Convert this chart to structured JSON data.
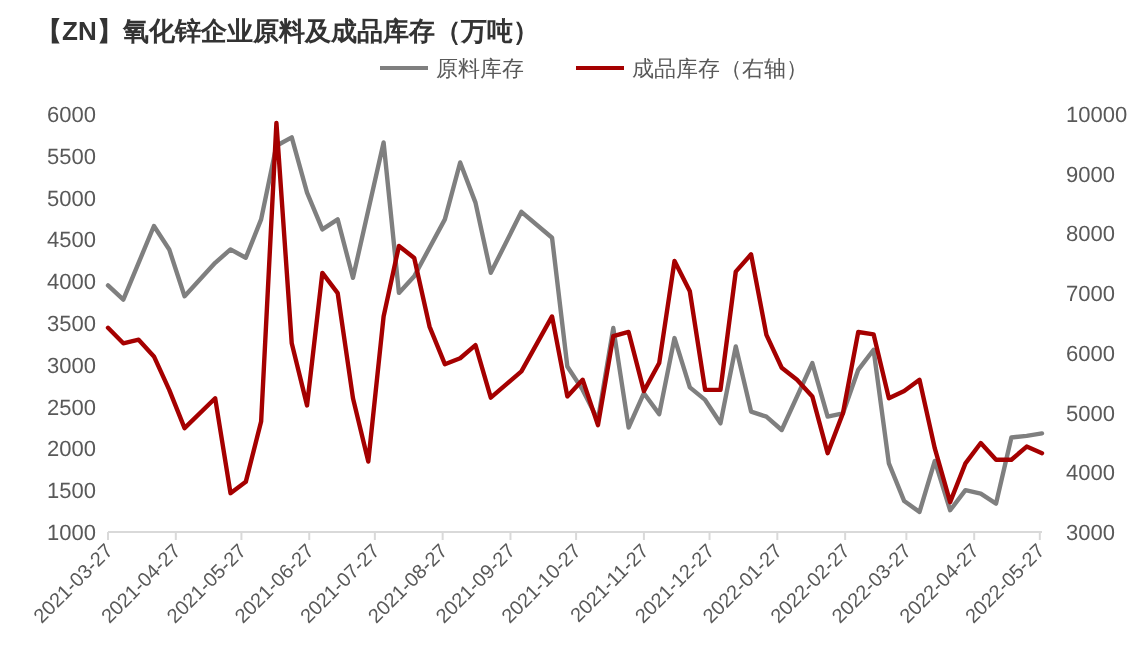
{
  "chart_data": {
    "type": "line",
    "title": "【ZN】氧化锌企业原料及成品库存（万吨）",
    "legend": "top",
    "grid": false,
    "xlim": [
      "2021-03-27",
      "2022-05-28"
    ],
    "xticks": [
      "2021-03-27",
      "2021-04-27",
      "2021-05-27",
      "2021-06-27",
      "2021-07-27",
      "2021-08-27",
      "2021-09-27",
      "2021-10-27",
      "2021-11-27",
      "2021-12-27",
      "2022-01-27",
      "2022-02-27",
      "2022-03-27",
      "2022-04-27",
      "2022-05-27"
    ],
    "ylim": [
      1000,
      6000
    ],
    "yticks": [
      1000,
      1500,
      2000,
      2500,
      3000,
      3500,
      4000,
      4500,
      5000,
      5500,
      6000
    ],
    "y2lim": [
      3000,
      10000
    ],
    "y2ticks": [
      3000,
      4000,
      5000,
      6000,
      7000,
      8000,
      9000,
      10000
    ],
    "series": [
      {
        "name": "原料库存",
        "color": "#7f7f7f",
        "axis": "y",
        "x": [
          "2021-03-27",
          "2021-04-03",
          "2021-04-17",
          "2021-04-24",
          "2021-05-01",
          "2021-05-15",
          "2021-05-22",
          "2021-05-29",
          "2021-06-05",
          "2021-06-12",
          "2021-06-19",
          "2021-06-26",
          "2021-07-03",
          "2021-07-10",
          "2021-07-17",
          "2021-07-31",
          "2021-08-07",
          "2021-08-14",
          "2021-08-28",
          "2021-09-04",
          "2021-09-11",
          "2021-09-18",
          "2021-10-02",
          "2021-10-16",
          "2021-10-23",
          "2021-10-30",
          "2021-11-06",
          "2021-11-13",
          "2021-11-20",
          "2021-11-27",
          "2021-12-04",
          "2021-12-11",
          "2021-12-18",
          "2021-12-25",
          "2022-01-01",
          "2022-01-08",
          "2022-01-15",
          "2022-01-22",
          "2022-01-29",
          "2022-02-12",
          "2022-02-19",
          "2022-02-26",
          "2022-03-05",
          "2022-03-12",
          "2022-03-19",
          "2022-03-26",
          "2022-04-02",
          "2022-04-09",
          "2022-04-16",
          "2022-04-23",
          "2022-04-30",
          "2022-05-07",
          "2022-05-14",
          "2022-05-21",
          "2022-05-28"
        ],
        "values": [
          3950,
          3780,
          4660,
          4380,
          3820,
          4220,
          4380,
          4280,
          4740,
          5620,
          5720,
          5060,
          4620,
          4740,
          4040,
          5660,
          3860,
          4060,
          4740,
          5420,
          4940,
          4100,
          4830,
          4520,
          2980,
          2700,
          2340,
          3440,
          2250,
          2660,
          2410,
          3320,
          2730,
          2580,
          2300,
          3220,
          2440,
          2380,
          2220,
          3020,
          2380,
          2420,
          2940,
          3180,
          1820,
          1370,
          1240,
          1850,
          1260,
          1500,
          1460,
          1340,
          2130,
          2150,
          2180
        ]
      },
      {
        "name": "成品库存（右轴）",
        "color": "#a50000",
        "axis": "y2",
        "x": [
          "2021-03-27",
          "2021-04-03",
          "2021-04-10",
          "2021-04-17",
          "2021-04-24",
          "2021-05-01",
          "2021-05-15",
          "2021-05-22",
          "2021-05-29",
          "2021-06-05",
          "2021-06-12",
          "2021-06-19",
          "2021-06-26",
          "2021-07-03",
          "2021-07-10",
          "2021-07-17",
          "2021-07-24",
          "2021-07-31",
          "2021-08-07",
          "2021-08-14",
          "2021-08-21",
          "2021-08-28",
          "2021-09-04",
          "2021-09-11",
          "2021-09-18",
          "2021-10-02",
          "2021-10-16",
          "2021-10-23",
          "2021-10-30",
          "2021-11-06",
          "2021-11-13",
          "2021-11-20",
          "2021-11-27",
          "2021-12-04",
          "2021-12-11",
          "2021-12-18",
          "2021-12-25",
          "2022-01-01",
          "2022-01-08",
          "2022-01-15",
          "2022-01-22",
          "2022-01-29",
          "2022-02-05",
          "2022-02-12",
          "2022-02-19",
          "2022-02-26",
          "2022-03-05",
          "2022-03-12",
          "2022-03-19",
          "2022-03-26",
          "2022-04-02",
          "2022-04-09",
          "2022-04-16",
          "2022-04-23",
          "2022-04-30",
          "2022-05-07",
          "2022-05-14",
          "2022-05-21",
          "2022-05-28"
        ],
        "values": [
          6420,
          6160,
          6220,
          5940,
          5380,
          4740,
          5240,
          3650,
          3840,
          4850,
          9850,
          6160,
          5120,
          7340,
          7000,
          5240,
          4180,
          6610,
          7790,
          7590,
          6440,
          5810,
          5910,
          6130,
          5250,
          5690,
          6610,
          5270,
          5550,
          4790,
          6280,
          6350,
          5360,
          5830,
          7540,
          7030,
          5380,
          5380,
          7360,
          7650,
          6300,
          5750,
          5550,
          5270,
          4320,
          4990,
          6350,
          6310,
          5240,
          5360,
          5550,
          4400,
          3500,
          4150,
          4490,
          4210,
          4210,
          4430,
          4320
        ]
      }
    ]
  }
}
